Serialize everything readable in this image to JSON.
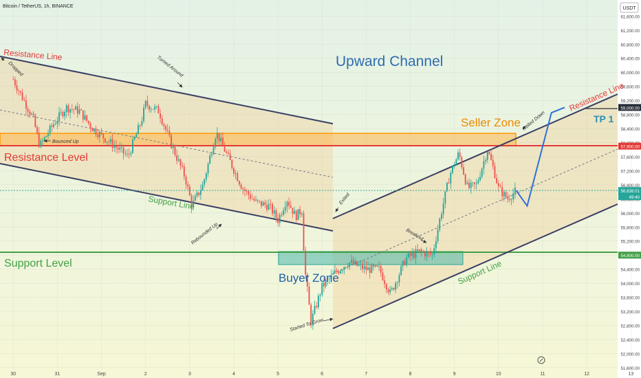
{
  "header": {
    "symbol_line": "Bitcoin / TetherUS, 1h, BINANCE",
    "currency_badge": "USDT"
  },
  "price_axis": {
    "ticks": [
      "61,600.00",
      "61,200.00",
      "60,800.00",
      "60,400.00",
      "60,000.00",
      "59,600.00",
      "59,200.00",
      "58,800.00",
      "58,400.00",
      "58,000.00",
      "57,600.00",
      "57,200.00",
      "56,800.00",
      "56,400.00",
      "56,000.00",
      "55,600.00",
      "55,200.00",
      "54,800.00",
      "54,400.00",
      "54,000.00",
      "53,600.00",
      "53,200.00",
      "52,800.00",
      "52,400.00",
      "52,000.00",
      "51,600.00"
    ],
    "tags": [
      {
        "text": "59,000.00",
        "color": "#2a2e39"
      },
      {
        "text": "57,900.00",
        "color": "#e53935"
      },
      {
        "text": "56,638.01",
        "color": "#26a69a"
      },
      {
        "text": "49:40",
        "color": "#26a69a"
      },
      {
        "text": "54,800.00",
        "color": "#43a047"
      }
    ]
  },
  "time_axis": {
    "labels": [
      "30",
      "31",
      "Sep",
      "2",
      "3",
      "4",
      "5",
      "6",
      "7",
      "8",
      "9",
      "10",
      "11",
      "12",
      "13"
    ]
  },
  "annotations": {
    "upward_channel": "Upward Channel",
    "seller_zone": "Seller Zone",
    "buyer_zone": "Buyer Zone",
    "tp1": "TP 1",
    "resistance_line_left": "Resistance Line",
    "resistance_line_right": "Resistance Line",
    "resistance_level": "Resistance Level",
    "support_level": "Support Level",
    "support_line_left": "Support Line",
    "support_line_right": "Support Line",
    "dropped": "Dropped",
    "turned_around": "Turned Around",
    "bounced_up": "Bounced Up",
    "rebounded_up": "Rebounded Up",
    "exited": "Exited",
    "breakout": "Breakout",
    "rolled_down": "Rolled Down",
    "started_to_grow": "Started To Grow"
  },
  "colors": {
    "bull": "#26a69a",
    "bear": "#ef5350",
    "resistance": "#e53935",
    "support": "#43a047",
    "channel": "#3a3f63",
    "seller_zone": "#ff9800",
    "buyer_zone": "#26a69a",
    "title_blue": "#2962ff"
  },
  "chart_data": {
    "type": "candlestick",
    "symbol": "Bitcoin / TetherUS",
    "interval": "1h",
    "exchange": "BINANCE",
    "ylim": [
      51500,
      61900
    ],
    "x_labels": [
      "30",
      "31",
      "Sep",
      "2",
      "3",
      "4",
      "5",
      "6",
      "7",
      "8",
      "9",
      "10",
      "11",
      "12",
      "13"
    ],
    "levels": {
      "resistance_level": 57900,
      "support_level": 54800,
      "tp1": 59000,
      "last_price": 56638.01
    },
    "zones": {
      "seller_zone": [
        57900,
        58300
      ],
      "buyer_zone": [
        54450,
        54850
      ]
    },
    "close_path": [
      {
        "x": 0.0,
        "y": 59800
      },
      {
        "x": 0.2,
        "y": 59300
      },
      {
        "x": 0.45,
        "y": 58700
      },
      {
        "x": 0.6,
        "y": 57900
      },
      {
        "x": 0.9,
        "y": 58500
      },
      {
        "x": 1.2,
        "y": 59000
      },
      {
        "x": 1.5,
        "y": 58900
      },
      {
        "x": 1.8,
        "y": 58400
      },
      {
        "x": 2.2,
        "y": 58000
      },
      {
        "x": 2.6,
        "y": 57600
      },
      {
        "x": 2.9,
        "y": 58600
      },
      {
        "x": 3.0,
        "y": 59100
      },
      {
        "x": 3.3,
        "y": 58900
      },
      {
        "x": 3.6,
        "y": 57900
      },
      {
        "x": 3.9,
        "y": 57000
      },
      {
        "x": 4.05,
        "y": 56200
      },
      {
        "x": 4.3,
        "y": 56800
      },
      {
        "x": 4.6,
        "y": 58300
      },
      {
        "x": 4.9,
        "y": 57500
      },
      {
        "x": 5.2,
        "y": 56700
      },
      {
        "x": 5.5,
        "y": 56300
      },
      {
        "x": 5.8,
        "y": 56200
      },
      {
        "x": 6.0,
        "y": 55800
      },
      {
        "x": 6.2,
        "y": 56400
      },
      {
        "x": 6.4,
        "y": 55900
      },
      {
        "x": 6.55,
        "y": 56100
      },
      {
        "x": 6.6,
        "y": 54500
      },
      {
        "x": 6.75,
        "y": 52900
      },
      {
        "x": 7.0,
        "y": 53900
      },
      {
        "x": 7.3,
        "y": 54300
      },
      {
        "x": 7.6,
        "y": 54600
      },
      {
        "x": 8.0,
        "y": 54400
      },
      {
        "x": 8.3,
        "y": 54400
      },
      {
        "x": 8.55,
        "y": 53700
      },
      {
        "x": 8.9,
        "y": 54700
      },
      {
        "x": 9.2,
        "y": 54900
      },
      {
        "x": 9.5,
        "y": 54800
      },
      {
        "x": 9.7,
        "y": 56000
      },
      {
        "x": 9.9,
        "y": 57100
      },
      {
        "x": 10.1,
        "y": 57700
      },
      {
        "x": 10.3,
        "y": 56700
      },
      {
        "x": 10.5,
        "y": 56800
      },
      {
        "x": 10.75,
        "y": 57800
      },
      {
        "x": 10.9,
        "y": 57200
      },
      {
        "x": 11.0,
        "y": 56700
      },
      {
        "x": 11.2,
        "y": 56400
      },
      {
        "x": 11.4,
        "y": 56638
      }
    ],
    "projection": [
      {
        "x": 11.4,
        "y": 56638
      },
      {
        "x": 11.65,
        "y": 56200
      },
      {
        "x": 12.2,
        "y": 58850
      },
      {
        "x": 12.5,
        "y": 59000
      }
    ]
  }
}
